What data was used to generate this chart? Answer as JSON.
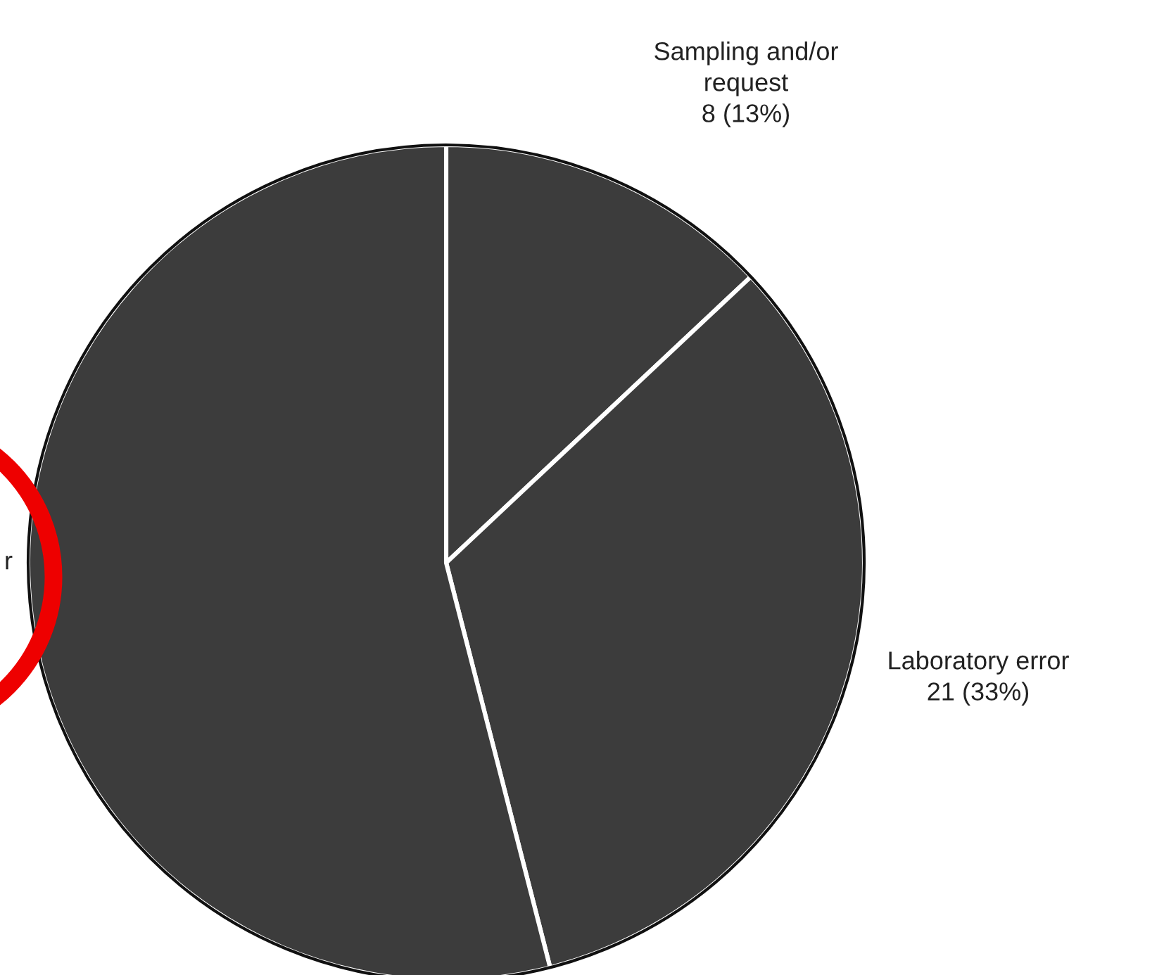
{
  "chart_data": {
    "type": "pie",
    "categories": [
      "Sampling and/or request",
      "Laboratory error",
      "r"
    ],
    "values": [
      13,
      33,
      54
    ],
    "value_labels": [
      "8 (13%)",
      "21 (33%)",
      null
    ],
    "colors": [
      "#3c3c3c",
      "#3c3c3c",
      "#3c3c3c"
    ],
    "legend": false
  }
}
